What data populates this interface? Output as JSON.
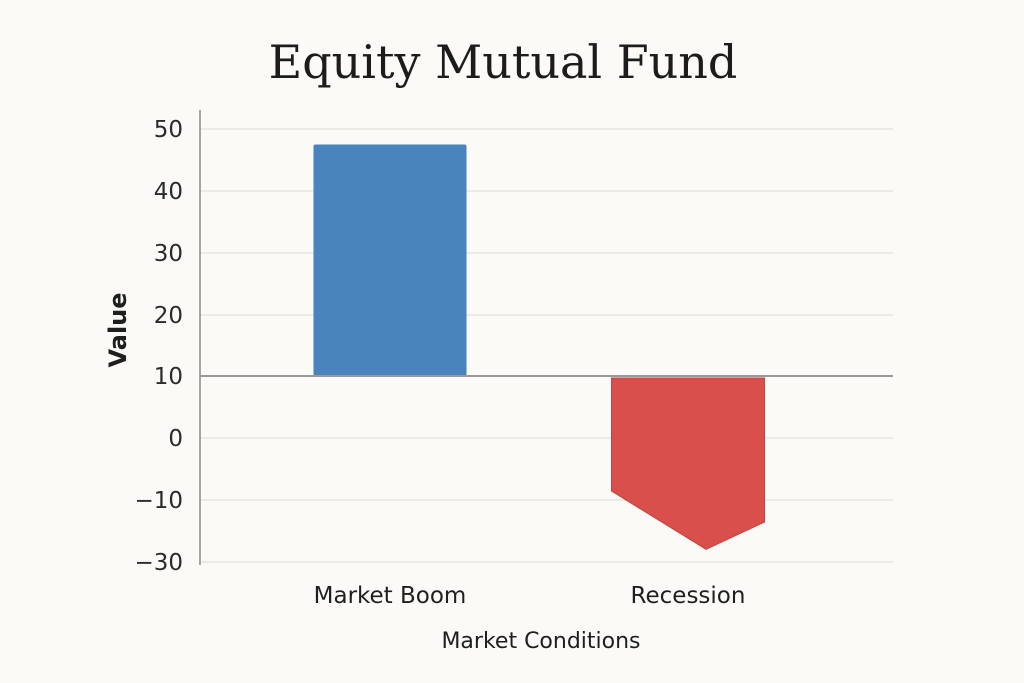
{
  "chart_data": {
    "type": "bar",
    "title": "Equity Mutual Fund",
    "xlabel": "Market Conditions",
    "ylabel": "Value",
    "categories": [
      "Market Boom",
      "Recession"
    ],
    "values": [
      47.5,
      -28.5
    ],
    "ylim": [
      -30,
      50
    ],
    "yticks": [
      50,
      40,
      30,
      20,
      10,
      0,
      -10,
      -30
    ],
    "ytick_labels": [
      "50",
      "40",
      "30",
      "20",
      "10",
      "0",
      "−10",
      "−30"
    ],
    "baseline_value": 10,
    "grid": true,
    "legend": "none",
    "colors": {
      "positive": "#4a84bd",
      "negative": "#d94f4c",
      "background": "#fbfaf7"
    }
  }
}
